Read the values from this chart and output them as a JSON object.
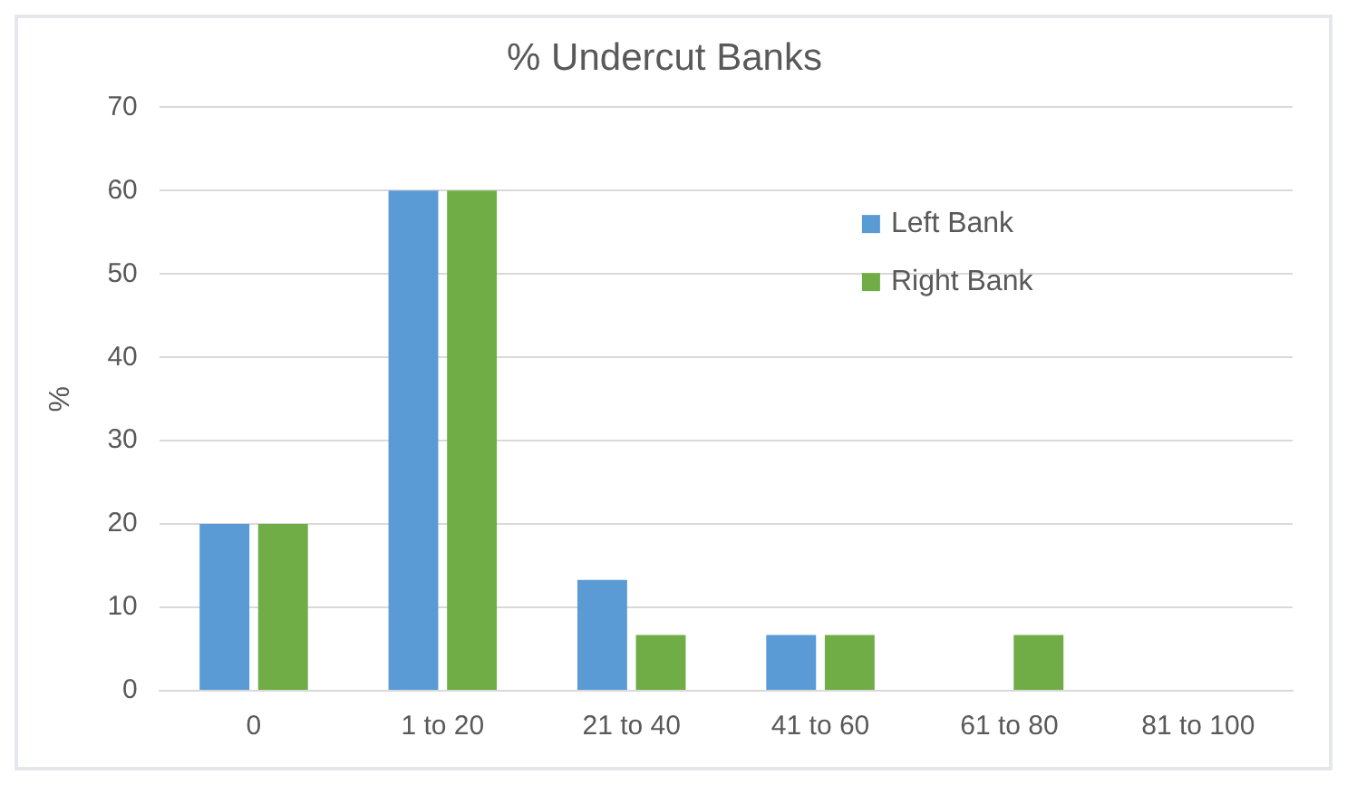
{
  "chart_data": {
    "type": "bar",
    "title": "% Undercut Banks",
    "ylabel": "%",
    "categories": [
      "0",
      "1 to 20",
      "21 to 40",
      "41 to 60",
      "61 to 80",
      "81 to 100"
    ],
    "series": [
      {
        "name": "Left Bank",
        "color": "#5b9bd5",
        "values": [
          20,
          60,
          13.3,
          6.7,
          0,
          0
        ]
      },
      {
        "name": "Right Bank",
        "color": "#70ad47",
        "values": [
          20,
          60,
          6.7,
          6.7,
          6.7,
          0
        ]
      }
    ],
    "ylim": [
      0,
      70
    ],
    "yticks": [
      0,
      10,
      20,
      30,
      40,
      50,
      60,
      70
    ],
    "grid": "y",
    "legend": "top right"
  }
}
